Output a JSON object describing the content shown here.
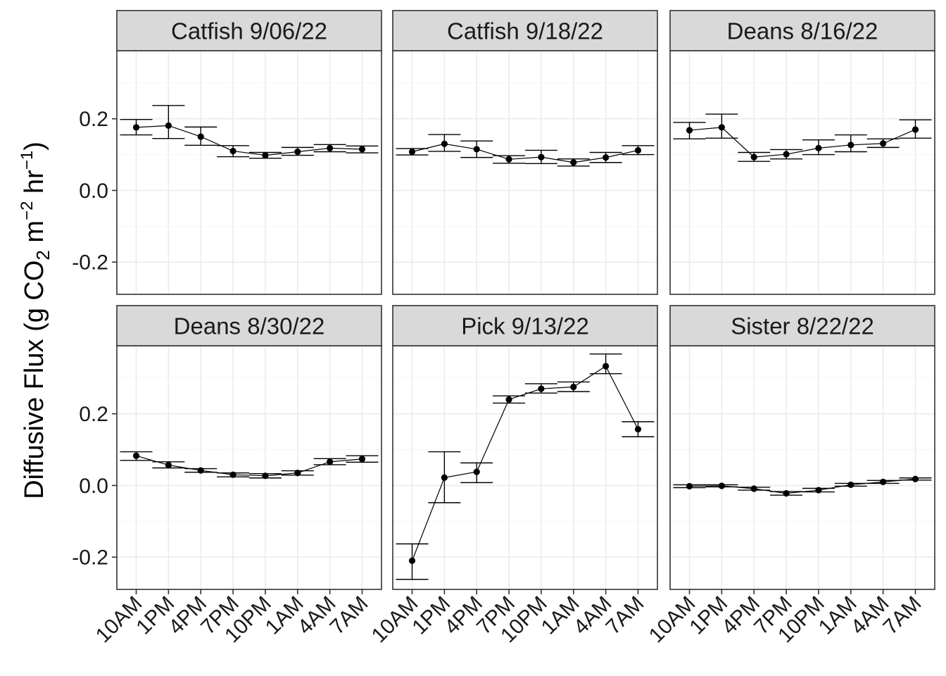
{
  "chart_data": {
    "type": "line",
    "facet_layout": "3 columns x 2 rows",
    "ylabel": {
      "prefix": "Diffusive Flux (g CO",
      "sub": "2",
      "mid": " m",
      "sup1": "−2",
      "mid2": " hr",
      "sup2": "−1",
      "suffix": ")"
    },
    "xlabel": "",
    "ylim": [
      -0.29,
      0.39
    ],
    "y_ticks": [
      -0.2,
      0.0,
      0.2
    ],
    "y_tick_labels": [
      "-0.2",
      "0.0",
      "0.2"
    ],
    "categories": [
      "10AM",
      "1PM",
      "4PM",
      "7PM",
      "10PM",
      "1AM",
      "4AM",
      "7AM"
    ],
    "grid": true,
    "legend": "none",
    "colors": {
      "line": "#000000",
      "point": "#000000",
      "strip_fill": "#d9d9d9",
      "panel_border": "#333333",
      "grid_major": "#ebebeb",
      "grid_minor": "#f5f5f5"
    },
    "panels": [
      {
        "title": "Catfish 9/06/22",
        "values": [
          0.176,
          0.181,
          0.15,
          0.11,
          0.098,
          0.108,
          0.118,
          0.115
        ],
        "lower": [
          0.155,
          0.145,
          0.126,
          0.094,
          0.09,
          0.098,
          0.108,
          0.105
        ],
        "upper": [
          0.198,
          0.237,
          0.177,
          0.125,
          0.106,
          0.12,
          0.128,
          0.124
        ]
      },
      {
        "title": "Catfish 9/18/22",
        "values": [
          0.108,
          0.13,
          0.115,
          0.087,
          0.093,
          0.078,
          0.092,
          0.112
        ],
        "lower": [
          0.099,
          0.109,
          0.092,
          0.076,
          0.075,
          0.068,
          0.078,
          0.1
        ],
        "upper": [
          0.117,
          0.156,
          0.138,
          0.097,
          0.112,
          0.088,
          0.106,
          0.125
        ]
      },
      {
        "title": "Deans 8/16/22",
        "values": [
          0.168,
          0.176,
          0.093,
          0.101,
          0.118,
          0.127,
          0.131,
          0.17
        ],
        "lower": [
          0.144,
          0.146,
          0.081,
          0.088,
          0.1,
          0.108,
          0.12,
          0.146
        ],
        "upper": [
          0.19,
          0.213,
          0.106,
          0.114,
          0.141,
          0.155,
          0.144,
          0.197
        ]
      },
      {
        "title": "Deans 8/30/22",
        "values": [
          0.083,
          0.057,
          0.042,
          0.03,
          0.027,
          0.035,
          0.066,
          0.074
        ],
        "lower": [
          0.07,
          0.049,
          0.037,
          0.024,
          0.021,
          0.029,
          0.058,
          0.065
        ],
        "upper": [
          0.094,
          0.066,
          0.047,
          0.035,
          0.033,
          0.041,
          0.075,
          0.083
        ]
      },
      {
        "title": "Pick 9/13/22",
        "values": [
          -0.21,
          0.022,
          0.038,
          0.24,
          0.27,
          0.275,
          0.333,
          0.157
        ],
        "lower": [
          -0.262,
          -0.048,
          0.008,
          0.23,
          0.258,
          0.262,
          0.312,
          0.136
        ],
        "upper": [
          -0.163,
          0.094,
          0.063,
          0.25,
          0.284,
          0.289,
          0.367,
          0.178
        ]
      },
      {
        "title": "Sister 8/22/22",
        "values": [
          -0.002,
          -0.001,
          -0.009,
          -0.022,
          -0.013,
          0.002,
          0.01,
          0.018
        ],
        "lower": [
          -0.006,
          -0.004,
          -0.013,
          -0.027,
          -0.018,
          -0.002,
          0.006,
          0.015
        ],
        "upper": [
          0.002,
          0.002,
          -0.005,
          -0.017,
          -0.008,
          0.006,
          0.014,
          0.021
        ]
      }
    ]
  }
}
